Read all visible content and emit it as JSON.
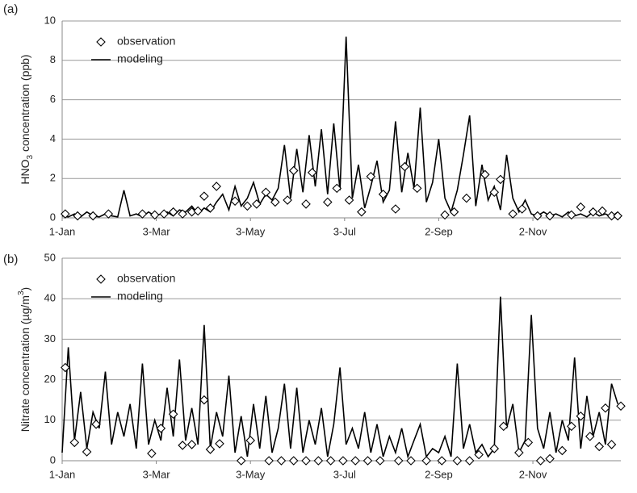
{
  "chart_data": [
    {
      "type": "line",
      "panel_label": "(a)",
      "ylabel_parts": [
        "HNO",
        "3",
        " concentration (ppb)"
      ],
      "ylabel_shift": "sub",
      "xlim": [
        0,
        362
      ],
      "ylim": [
        0,
        10
      ],
      "xticks": [
        {
          "value": 0,
          "label": "1-Jan"
        },
        {
          "value": 61,
          "label": "3-Mar"
        },
        {
          "value": 122,
          "label": "3-May"
        },
        {
          "value": 183,
          "label": "3-Jul"
        },
        {
          "value": 244,
          "label": "2-Sep"
        },
        {
          "value": 305,
          "label": "2-Nov"
        }
      ],
      "yticks": [
        0,
        2,
        4,
        6,
        8,
        10
      ],
      "grid": true,
      "legend": "upper left",
      "series": [
        {
          "name": "observation",
          "style": "markers",
          "color": "#000000",
          "x": [
            2,
            10,
            20,
            30,
            52,
            60,
            66,
            72,
            78,
            84,
            88,
            92,
            96,
            100,
            112,
            120,
            126,
            132,
            138,
            146,
            150,
            158,
            162,
            172,
            178,
            186,
            194,
            200,
            208,
            216,
            222,
            230,
            248,
            254,
            262,
            274,
            280,
            284,
            292,
            298,
            308,
            316,
            330,
            336,
            344,
            350,
            356,
            360
          ],
          "values": [
            0.2,
            0.1,
            0.1,
            0.2,
            0.2,
            0.15,
            0.2,
            0.3,
            0.2,
            0.3,
            0.35,
            1.1,
            0.5,
            1.6,
            0.85,
            0.6,
            0.7,
            1.3,
            0.8,
            0.9,
            2.4,
            0.7,
            2.3,
            0.8,
            1.5,
            0.9,
            0.3,
            2.1,
            1.2,
            0.45,
            2.6,
            1.5,
            0.15,
            0.3,
            1.0,
            2.2,
            1.3,
            1.95,
            0.2,
            0.45,
            0.1,
            0.1,
            0.15,
            0.55,
            0.3,
            0.35,
            0.1,
            0.1
          ]
        },
        {
          "name": "modeling",
          "style": "line",
          "color": "#000000",
          "x": [
            0,
            4,
            8,
            12,
            16,
            20,
            24,
            28,
            32,
            36,
            40,
            44,
            48,
            52,
            56,
            60,
            64,
            68,
            72,
            76,
            80,
            84,
            88,
            92,
            96,
            100,
            104,
            108,
            112,
            116,
            120,
            124,
            128,
            132,
            136,
            140,
            144,
            148,
            152,
            156,
            160,
            164,
            168,
            172,
            176,
            180,
            184,
            188,
            192,
            196,
            200,
            204,
            208,
            212,
            216,
            220,
            224,
            228,
            232,
            236,
            240,
            244,
            248,
            252,
            256,
            260,
            264,
            268,
            272,
            276,
            280,
            284,
            288,
            292,
            296,
            300,
            304,
            308,
            312,
            316,
            320,
            324,
            328,
            332,
            336,
            340,
            344,
            348,
            352,
            356,
            360
          ],
          "values": [
            0.1,
            0.05,
            0.2,
            0.05,
            0.3,
            0.1,
            0.05,
            0.2,
            0.1,
            0.05,
            1.4,
            0.1,
            0.2,
            0.05,
            0.3,
            0.1,
            0.2,
            0.3,
            0.1,
            0.4,
            0.3,
            0.6,
            0.2,
            0.5,
            0.3,
            0.8,
            1.2,
            0.4,
            1.6,
            0.6,
            1.0,
            1.8,
            0.7,
            1.2,
            0.9,
            1.5,
            3.7,
            1.0,
            3.5,
            1.3,
            4.2,
            1.6,
            4.5,
            1.2,
            4.8,
            1.4,
            9.2,
            1.0,
            2.7,
            0.5,
            1.6,
            2.9,
            0.8,
            1.4,
            4.9,
            1.3,
            3.3,
            1.5,
            5.6,
            0.8,
            1.8,
            4.0,
            1.0,
            0.3,
            1.4,
            3.2,
            5.2,
            0.6,
            2.7,
            0.9,
            1.6,
            0.4,
            3.2,
            1.0,
            0.3,
            0.9,
            0.2,
            0.1,
            0.3,
            0.1,
            0.2,
            0.05,
            0.3,
            0.1,
            0.2,
            0.05,
            0.3,
            0.1,
            0.2,
            0.05,
            0.3
          ]
        }
      ]
    },
    {
      "type": "line",
      "panel_label": "(b)",
      "ylabel_parts": [
        "Nitrate concentration (µg/m",
        "3",
        ")"
      ],
      "ylabel_shift": "super",
      "xlim": [
        0,
        362
      ],
      "ylim": [
        0,
        50
      ],
      "xticks": [
        {
          "value": 0,
          "label": "1-Jan"
        },
        {
          "value": 61,
          "label": "3-Mar"
        },
        {
          "value": 122,
          "label": "3-May"
        },
        {
          "value": 183,
          "label": "3-Jul"
        },
        {
          "value": 244,
          "label": "2-Sep"
        },
        {
          "value": 305,
          "label": "2-Nov"
        }
      ],
      "yticks": [
        0,
        10,
        20,
        30,
        40,
        50
      ],
      "grid": true,
      "legend": "upper left",
      "series": [
        {
          "name": "observation",
          "style": "markers",
          "color": "#000000",
          "x": [
            2,
            8,
            16,
            22,
            58,
            64,
            72,
            78,
            84,
            92,
            96,
            102,
            116,
            122,
            134,
            142,
            150,
            158,
            166,
            174,
            182,
            190,
            198,
            206,
            218,
            226,
            236,
            246,
            256,
            264,
            270,
            280,
            286,
            296,
            302,
            310,
            316,
            324,
            330,
            336,
            342,
            348,
            352,
            356,
            362
          ],
          "values": [
            23,
            4.5,
            2.2,
            9,
            1.8,
            8,
            11.5,
            3.8,
            4,
            15,
            2.8,
            4.2,
            0,
            5,
            0,
            0,
            0,
            0,
            0,
            0,
            0,
            0,
            0,
            0,
            0,
            0,
            0,
            0,
            0,
            0,
            1.5,
            3,
            8.5,
            2,
            4.5,
            0,
            0.5,
            2.5,
            8.5,
            11,
            6,
            3.5,
            13,
            4,
            13.5
          ]
        },
        {
          "name": "modeling",
          "style": "line",
          "color": "#000000",
          "x": [
            0,
            4,
            8,
            12,
            16,
            20,
            24,
            28,
            32,
            36,
            40,
            44,
            48,
            52,
            56,
            60,
            64,
            68,
            72,
            76,
            80,
            84,
            88,
            92,
            96,
            100,
            104,
            108,
            112,
            116,
            120,
            124,
            128,
            132,
            136,
            140,
            144,
            148,
            152,
            156,
            160,
            164,
            168,
            172,
            176,
            180,
            184,
            188,
            192,
            196,
            200,
            204,
            208,
            212,
            216,
            220,
            224,
            228,
            232,
            236,
            240,
            244,
            248,
            252,
            256,
            260,
            264,
            268,
            272,
            276,
            280,
            284,
            288,
            292,
            296,
            300,
            304,
            308,
            312,
            316,
            320,
            324,
            328,
            332,
            336,
            340,
            344,
            348,
            352,
            356,
            360
          ],
          "values": [
            2,
            28,
            5,
            17,
            3,
            12,
            8,
            22,
            4,
            12,
            6,
            14,
            3,
            24,
            4,
            10,
            5,
            18,
            6,
            25,
            5,
            13,
            4,
            33.5,
            3,
            12,
            6,
            21,
            2,
            11,
            1,
            14,
            3,
            16,
            2,
            8,
            19,
            3,
            18,
            2,
            10,
            4,
            13,
            1,
            9,
            23,
            4,
            8,
            3,
            12,
            2,
            9,
            1,
            6,
            2,
            8,
            1,
            5,
            9,
            1,
            3,
            2,
            6,
            1,
            24,
            3,
            9,
            2,
            4,
            1,
            3,
            40.5,
            8,
            14,
            2,
            5,
            36,
            8,
            3,
            12,
            2,
            10,
            5,
            25.5,
            3,
            16,
            6,
            12,
            4,
            19,
            14
          ]
        }
      ]
    }
  ]
}
